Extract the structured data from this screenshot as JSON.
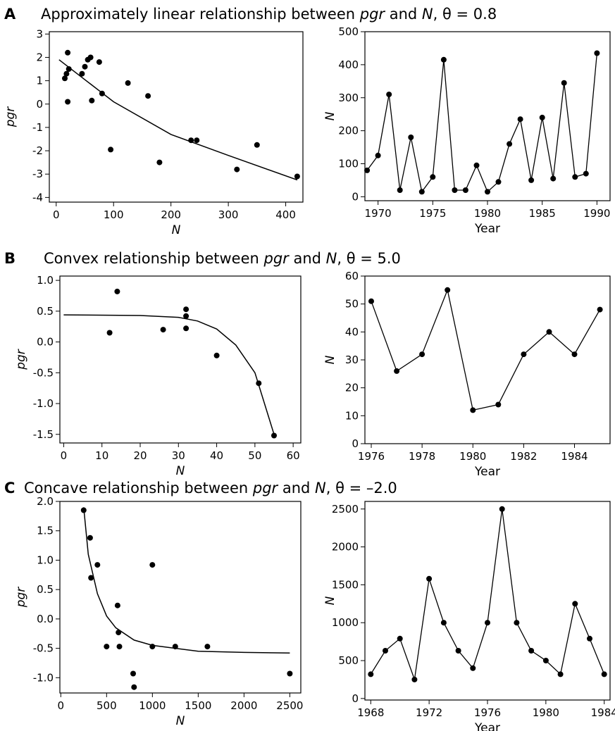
{
  "panels": [
    {
      "letter": "A",
      "title_parts": [
        "Approximately linear relationship between ",
        "pgr",
        " and ",
        "N",
        ", θ = 0.8"
      ]
    },
    {
      "letter": "B",
      "title_parts": [
        "Convex relationship between ",
        "pgr",
        " and ",
        "N",
        ", θ = 5.0"
      ]
    },
    {
      "letter": "C",
      "title_parts": [
        "Concave relationship between ",
        "pgr",
        " and ",
        "N",
        ", θ = –2.0"
      ]
    }
  ],
  "chart_data": [
    {
      "panel": "A",
      "type": "scatter",
      "xlabel": "N",
      "ylabel": "pgr",
      "xlim": [
        -12,
        430
      ],
      "ylim": [
        -4.2,
        3.1
      ],
      "xticks": [
        0,
        100,
        200,
        300,
        400
      ],
      "yticks": [
        3,
        2,
        1,
        0,
        -1,
        -2,
        -3,
        -4
      ],
      "x": [
        15,
        18,
        20,
        20,
        22,
        45,
        50,
        55,
        60,
        62,
        75,
        80,
        95,
        125,
        160,
        180,
        235,
        245,
        315,
        350,
        420
      ],
      "y": [
        1.1,
        1.3,
        2.2,
        0.1,
        1.5,
        1.3,
        1.6,
        1.9,
        2.0,
        0.15,
        1.8,
        0.45,
        -1.95,
        0.9,
        0.35,
        -2.5,
        -1.55,
        -1.55,
        -2.8,
        -1.75,
        -3.1
      ],
      "fit": {
        "x": [
          5,
          100,
          200,
          300,
          420
        ],
        "y": [
          1.9,
          0.1,
          -1.3,
          -2.2,
          -3.25
        ]
      }
    },
    {
      "panel": "A",
      "type": "line",
      "xlabel": "Year",
      "ylabel": "N",
      "xlim": [
        1968.8,
        1991.2
      ],
      "ylim": [
        -12,
        500
      ],
      "xticks": [
        1970,
        1975,
        1980,
        1985,
        1990
      ],
      "yticks": [
        500,
        400,
        300,
        200,
        100,
        0
      ],
      "x": [
        1969,
        1970,
        1971,
        1972,
        1973,
        1974,
        1975,
        1976,
        1977,
        1978,
        1979,
        1980,
        1981,
        1982,
        1983,
        1984,
        1985,
        1986,
        1987,
        1988,
        1989,
        1990
      ],
      "y": [
        80,
        125,
        310,
        20,
        180,
        15,
        60,
        415,
        20,
        20,
        95,
        15,
        45,
        160,
        235,
        50,
        240,
        55,
        345,
        60,
        70,
        435
      ]
    },
    {
      "panel": "B",
      "type": "scatter",
      "xlabel": "N",
      "ylabel": "pgr",
      "xlim": [
        -1,
        62
      ],
      "ylim": [
        -1.64,
        1.07
      ],
      "xticks": [
        0,
        10,
        20,
        30,
        40,
        50,
        60
      ],
      "yticks": [
        1.0,
        0.5,
        0.0,
        -0.5,
        -1.0,
        -1.5
      ],
      "ytick_labels": [
        "1.0",
        "0.5",
        "0.0",
        "-0.5",
        "-1.0",
        "-1.5"
      ],
      "x": [
        12,
        14,
        26,
        32,
        32,
        32,
        40,
        51,
        55
      ],
      "y": [
        0.15,
        0.82,
        0.2,
        0.53,
        0.42,
        0.22,
        -0.22,
        -0.67,
        -1.52
      ],
      "fit": {
        "x": [
          0,
          20,
          30,
          35,
          40,
          45,
          50,
          55
        ],
        "y": [
          0.44,
          0.43,
          0.4,
          0.34,
          0.21,
          -0.05,
          -0.5,
          -1.5
        ]
      }
    },
    {
      "panel": "B",
      "type": "line",
      "xlabel": "Year",
      "ylabel": "N",
      "xlim": [
        1975.75,
        1985.4
      ],
      "ylim": [
        0,
        60
      ],
      "xticks": [
        1976,
        1978,
        1980,
        1982,
        1984
      ],
      "yticks": [
        60,
        50,
        40,
        30,
        20,
        10,
        0
      ],
      "x": [
        1976,
        1977,
        1978,
        1979,
        1980,
        1981,
        1982,
        1983,
        1984,
        1985
      ],
      "y": [
        51,
        26,
        32,
        55,
        12,
        14,
        32,
        40,
        32,
        48
      ]
    },
    {
      "panel": "C",
      "type": "scatter",
      "xlabel": "N",
      "ylabel": "pgr",
      "xlim": [
        -10,
        2620
      ],
      "ylim": [
        -1.26,
        2.0
      ],
      "xticks": [
        0,
        500,
        1000,
        1500,
        2000,
        2500
      ],
      "yticks": [
        2.0,
        1.5,
        1.0,
        0.5,
        0.0,
        -0.5,
        -1.0
      ],
      "ytick_labels": [
        "2.0",
        "1.5",
        "1.0",
        "0.5",
        "0.0",
        "-0.5",
        "-1.0"
      ],
      "x": [
        250,
        320,
        330,
        400,
        500,
        620,
        630,
        640,
        790,
        800,
        1000,
        1000,
        1250,
        1600,
        2500
      ],
      "y": [
        1.85,
        1.38,
        0.7,
        0.92,
        -0.47,
        0.23,
        -0.23,
        -0.47,
        -0.93,
        -1.16,
        0.92,
        -0.47,
        -0.47,
        -0.47,
        -0.93
      ],
      "fit": {
        "x": [
          250,
          300,
          400,
          500,
          600,
          800,
          1000,
          1500,
          2000,
          2500
        ],
        "y": [
          1.9,
          1.1,
          0.43,
          0.05,
          -0.15,
          -0.36,
          -0.45,
          -0.55,
          -0.57,
          -0.58
        ]
      }
    },
    {
      "panel": "C",
      "type": "line",
      "xlabel": "Year",
      "ylabel": "N",
      "xlim": [
        1967.6,
        1984.4
      ],
      "ylim": [
        -20,
        2600
      ],
      "xticks": [
        1968,
        1972,
        1976,
        1980,
        1984
      ],
      "yticks": [
        2500,
        2000,
        1500,
        1000,
        500,
        0
      ],
      "x": [
        1968,
        1969,
        1970,
        1971,
        1972,
        1973,
        1974,
        1975,
        1976,
        1977,
        1978,
        1979,
        1980,
        1981,
        1982,
        1983,
        1984
      ],
      "y": [
        320,
        630,
        790,
        250,
        1580,
        1000,
        630,
        400,
        1000,
        2500,
        1000,
        630,
        500,
        320,
        1250,
        790,
        320
      ]
    }
  ]
}
